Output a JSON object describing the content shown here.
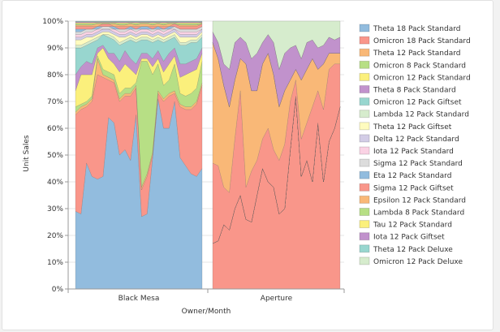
{
  "chart_data": {
    "type": "area",
    "stacked": "percent",
    "xlabel": "Owner/Month",
    "ylabel": "Unit Sales",
    "ylim": [
      0,
      100
    ],
    "yticks": [
      "0%",
      "10%",
      "20%",
      "30%",
      "40%",
      "50%",
      "60%",
      "70%",
      "80%",
      "90%",
      "100%"
    ],
    "grid": true,
    "legend_position": "right",
    "groups": [
      {
        "name": "Black Mesa",
        "bounds": [
          [
            29,
            28,
            47,
            42,
            41,
            42,
            64,
            62,
            50,
            52,
            48,
            65,
            27,
            28,
            49,
            71,
            60,
            60,
            70,
            49,
            46,
            43,
            42,
            45
          ],
          [
            65,
            67,
            68,
            70,
            80,
            79,
            78,
            77,
            70,
            72,
            72,
            75,
            37,
            42,
            50,
            73,
            70,
            72,
            73,
            68,
            67,
            67,
            69,
            76
          ],
          [
            66,
            68,
            69,
            71,
            86,
            80,
            79,
            78,
            71,
            73,
            73,
            76,
            38,
            43,
            51,
            74,
            71,
            73,
            74,
            69,
            68,
            68,
            70,
            77
          ],
          [
            68,
            69,
            70,
            72,
            87,
            82,
            81,
            80,
            73,
            75,
            75,
            77,
            85,
            85,
            80,
            84,
            76,
            78,
            84,
            73,
            72,
            73,
            75,
            85
          ],
          [
            74,
            80,
            80,
            80,
            88,
            90,
            86,
            84,
            81,
            84,
            82,
            80,
            86,
            86,
            83,
            86,
            81,
            84,
            87,
            79,
            80,
            81,
            82,
            88
          ],
          [
            80,
            83,
            85,
            84,
            90,
            91,
            88,
            88,
            85,
            89,
            86,
            84,
            88,
            88,
            86,
            89,
            85,
            88,
            90,
            84,
            84,
            85,
            86,
            90
          ],
          [
            90,
            90,
            91,
            92,
            93,
            95,
            94,
            93,
            91,
            92,
            93,
            92,
            93,
            93,
            92,
            93,
            92,
            93,
            94,
            91,
            91,
            92,
            92,
            94
          ],
          [
            91,
            91,
            92,
            93,
            94,
            95,
            95,
            94,
            92,
            93,
            94,
            93,
            94,
            94,
            93,
            94,
            93,
            94,
            95,
            92,
            92,
            93,
            93,
            95
          ],
          [
            93,
            93,
            94,
            94,
            95,
            96,
            96,
            95,
            94,
            94,
            95,
            94,
            95,
            95,
            94,
            95,
            94,
            95,
            96,
            94,
            94,
            94,
            94,
            96
          ],
          [
            94,
            94,
            95,
            95,
            96,
            97,
            97,
            96,
            95,
            95,
            96,
            95,
            96,
            96,
            95,
            96,
            95,
            96,
            97,
            95,
            95,
            95,
            95,
            97
          ],
          [
            95,
            95,
            96,
            96,
            97,
            97,
            97,
            97,
            96,
            96,
            97,
            96,
            97,
            97,
            96,
            97,
            96,
            97,
            97,
            96,
            96,
            96,
            96,
            97
          ],
          [
            96,
            96,
            97,
            97,
            97,
            98,
            98,
            97,
            97,
            97,
            97,
            97,
            97,
            97,
            97,
            97,
            97,
            97,
            98,
            97,
            97,
            97,
            97,
            98
          ],
          [
            97,
            97,
            97,
            97,
            98,
            98,
            98,
            98,
            97,
            97,
            98,
            97,
            98,
            98,
            97,
            98,
            97,
            98,
            98,
            97,
            97,
            97,
            97,
            98
          ],
          [
            98,
            98,
            98,
            98,
            98,
            99,
            99,
            98,
            98,
            98,
            98,
            98,
            98,
            98,
            98,
            98,
            98,
            98,
            99,
            98,
            98,
            98,
            98,
            99
          ],
          [
            98.5,
            98.5,
            98.5,
            98.5,
            99,
            99,
            99,
            99,
            98.5,
            98.5,
            99,
            98.5,
            99,
            99,
            98.5,
            99,
            98.5,
            99,
            99,
            98.5,
            98.5,
            98.5,
            98.5,
            99
          ],
          [
            99,
            99,
            99,
            99,
            99.3,
            99.3,
            99.3,
            99.3,
            99,
            99,
            99.3,
            99,
            99.3,
            99.3,
            99,
            99.3,
            99,
            99.3,
            99.3,
            99,
            99,
            99,
            99,
            99.3
          ],
          [
            99.4,
            99.4,
            99.4,
            99.4,
            99.5,
            99.5,
            99.5,
            99.5,
            99.4,
            99.4,
            99.5,
            99.4,
            99.5,
            99.5,
            99.4,
            99.5,
            99.4,
            99.5,
            99.5,
            99.4,
            99.4,
            99.4,
            99.4,
            99.5
          ],
          [
            99.7,
            99.7,
            99.7,
            99.7,
            99.7,
            99.7,
            99.7,
            99.7,
            99.7,
            99.7,
            99.7,
            99.7,
            99.7,
            99.7,
            99.7,
            99.7,
            99.7,
            99.7,
            99.7,
            99.7,
            99.7,
            99.7,
            99.7,
            99.7
          ],
          [
            99.9,
            99.9,
            99.9,
            99.9,
            99.9,
            99.9,
            99.9,
            99.9,
            99.9,
            99.9,
            99.9,
            99.9,
            99.9,
            99.9,
            99.9,
            99.9,
            99.9,
            99.9,
            99.9,
            99.9,
            99.9,
            99.9,
            99.9,
            99.9
          ],
          [
            100,
            100,
            100,
            100,
            100,
            100,
            100,
            100,
            100,
            100,
            100,
            100,
            100,
            100,
            100,
            100,
            100,
            100,
            100,
            100,
            100,
            100,
            100,
            100
          ]
        ]
      },
      {
        "name": "Aperture",
        "bounds": [
          [
            0,
            0,
            0,
            0,
            0,
            0,
            0,
            0,
            0,
            0,
            0,
            0,
            0,
            0,
            0,
            0,
            0,
            0,
            0,
            0,
            0,
            0,
            0,
            0
          ],
          [
            17,
            18,
            24,
            22,
            30,
            35,
            26,
            25,
            35,
            45,
            40,
            38,
            28,
            30,
            52,
            72,
            42,
            48,
            40,
            62,
            40,
            55,
            60,
            68
          ],
          [
            17,
            18,
            24,
            22,
            30,
            35,
            26,
            25,
            35,
            45,
            40,
            38,
            28,
            30,
            52,
            72,
            42,
            48,
            40,
            62,
            40,
            55,
            60,
            68
          ],
          [
            17,
            18,
            24,
            22,
            30,
            35,
            26,
            25,
            35,
            45,
            40,
            38,
            28,
            30,
            52,
            72,
            42,
            48,
            40,
            62,
            40,
            55,
            60,
            68
          ],
          [
            17,
            18,
            24,
            22,
            30,
            35,
            26,
            25,
            35,
            45,
            40,
            38,
            28,
            30,
            52,
            72,
            42,
            48,
            40,
            62,
            40,
            55,
            60,
            68
          ],
          [
            17,
            18,
            24,
            22,
            30,
            35,
            26,
            25,
            35,
            45,
            40,
            38,
            28,
            30,
            52,
            72,
            42,
            48,
            40,
            62,
            40,
            55,
            60,
            68
          ],
          [
            17,
            18,
            24,
            22,
            30,
            35,
            26,
            25,
            35,
            45,
            40,
            38,
            28,
            30,
            52,
            72,
            42,
            48,
            40,
            62,
            40,
            55,
            60,
            68
          ],
          [
            17,
            18,
            24,
            22,
            30,
            35,
            26,
            25,
            35,
            45,
            40,
            38,
            28,
            30,
            52,
            72,
            42,
            48,
            40,
            62,
            40,
            55,
            60,
            68
          ],
          [
            17,
            18,
            24,
            22,
            30,
            35,
            26,
            25,
            35,
            45,
            40,
            38,
            28,
            30,
            52,
            72,
            42,
            48,
            40,
            62,
            40,
            55,
            60,
            68
          ],
          [
            17,
            18,
            24,
            22,
            30,
            35,
            26,
            25,
            35,
            45,
            40,
            38,
            28,
            30,
            52,
            72,
            42,
            48,
            40,
            62,
            40,
            55,
            60,
            68
          ],
          [
            17,
            18,
            24,
            22,
            30,
            35,
            26,
            25,
            35,
            45,
            40,
            38,
            28,
            30,
            52,
            72,
            42,
            48,
            40,
            62,
            40,
            55,
            60,
            68
          ],
          [
            17,
            18,
            24,
            22,
            30,
            35,
            26,
            25,
            35,
            45,
            40,
            38,
            28,
            30,
            52,
            72,
            42,
            48,
            40,
            62,
            40,
            55,
            60,
            68
          ],
          [
            17,
            18,
            24,
            22,
            30,
            35,
            26,
            25,
            35,
            45,
            40,
            38,
            28,
            30,
            52,
            72,
            42,
            48,
            40,
            62,
            40,
            55,
            60,
            68
          ],
          [
            47,
            46,
            38,
            36,
            56,
            74,
            38,
            44,
            48,
            56,
            60,
            52,
            48,
            54,
            70,
            78,
            56,
            62,
            68,
            74,
            67,
            82,
            84,
            84
          ],
          [
            92,
            86,
            76,
            68,
            78,
            86,
            84,
            74,
            74,
            84,
            88,
            80,
            68,
            74,
            78,
            82,
            78,
            82,
            86,
            82,
            84,
            88,
            88,
            88
          ],
          [
            92,
            86,
            76,
            68,
            78,
            86,
            84,
            74,
            74,
            84,
            88,
            80,
            68,
            74,
            78,
            82,
            78,
            82,
            86,
            82,
            84,
            88,
            88,
            88
          ],
          [
            92,
            86,
            76,
            68,
            78,
            86,
            84,
            74,
            74,
            84,
            88,
            80,
            68,
            74,
            78,
            82,
            78,
            82,
            86,
            82,
            84,
            88,
            88,
            88
          ],
          [
            96,
            92,
            84,
            82,
            92,
            94,
            92,
            86,
            88,
            92,
            95,
            92,
            82,
            88,
            90,
            91,
            86,
            92,
            93,
            90,
            91,
            94,
            93,
            94
          ],
          [
            96,
            92,
            84,
            82,
            92,
            94,
            92,
            86,
            88,
            92,
            95,
            92,
            82,
            88,
            90,
            91,
            86,
            92,
            93,
            90,
            91,
            94,
            93,
            94
          ],
          [
            100,
            100,
            100,
            100,
            100,
            100,
            100,
            100,
            100,
            100,
            100,
            100,
            100,
            100,
            100,
            100,
            100,
            100,
            100,
            100,
            100,
            100,
            100,
            100
          ]
        ]
      }
    ],
    "series": [
      {
        "name": "Theta 18 Pack Standard",
        "color": "#92bcde"
      },
      {
        "name": "Omicron 18 Pack Standard",
        "color": "#f9968a"
      },
      {
        "name": "Theta 12 Pack Standard",
        "color": "#f9b877"
      },
      {
        "name": "Omicron 8 Pack Standard",
        "color": "#b7df85"
      },
      {
        "name": "Omicron 12 Pack Standard",
        "color": "#fbf07c"
      },
      {
        "name": "Theta 8 Pack Standard",
        "color": "#c192cc"
      },
      {
        "name": "Omicron 12 Pack Giftset",
        "color": "#98d6cf"
      },
      {
        "name": "Lambda 12 Pack Standard",
        "color": "#d6eccd"
      },
      {
        "name": "Theta 12 Pack Giftset",
        "color": "#fefbbe"
      },
      {
        "name": "Delta 12 Pack Standard",
        "color": "#d2cce6"
      },
      {
        "name": "Iota 12 Pack Standard",
        "color": "#fad2e4"
      },
      {
        "name": "Sigma 12 Pack Standard",
        "color": "#dcdcdc"
      },
      {
        "name": "Eta 12 Pack Standard",
        "color": "#92bcde"
      },
      {
        "name": "Sigma 12 Pack Giftset",
        "color": "#f9968a"
      },
      {
        "name": "Epsilon 12 Pack Standard",
        "color": "#f9b877"
      },
      {
        "name": "Lambda 8 Pack Standard",
        "color": "#b7df85"
      },
      {
        "name": "Tau 12 Pack Standard",
        "color": "#fbf07c"
      },
      {
        "name": "Iota 12 Pack Giftset",
        "color": "#c192cc"
      },
      {
        "name": "Theta 12 Pack Deluxe",
        "color": "#98d6cf"
      },
      {
        "name": "Omicron 12 Pack Deluxe",
        "color": "#d6eccd"
      }
    ]
  }
}
